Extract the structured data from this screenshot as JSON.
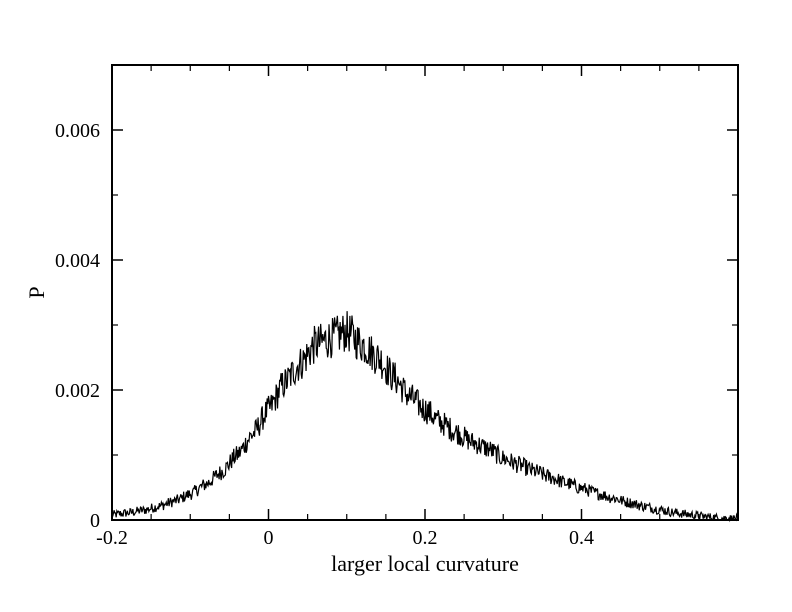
{
  "chart_data": {
    "type": "line",
    "title": "",
    "xlabel": "larger local curvature",
    "ylabel": "P",
    "xlim": [
      -0.2,
      0.6
    ],
    "ylim": [
      0,
      0.007
    ],
    "x_ticks": [
      -0.2,
      0,
      0.2,
      0.4
    ],
    "x_tick_labels": [
      "-0.2",
      "0",
      "0.2",
      "0.4"
    ],
    "y_ticks": [
      0,
      0.002,
      0.004,
      0.006
    ],
    "y_tick_labels": [
      "0",
      "0.002",
      "0.004",
      "0.006"
    ],
    "x_minor_step": 0.05,
    "y_minor_step": 0.001,
    "grid": false,
    "legend": "none",
    "line_color": "#000000",
    "series": [
      {
        "x": [
          -0.2,
          -0.18,
          -0.16,
          -0.14,
          -0.12,
          -0.1,
          -0.08,
          -0.06,
          -0.04,
          -0.02,
          0,
          0.02,
          0.04,
          0.06,
          0.08,
          0.1,
          0.12,
          0.14,
          0.16,
          0.18,
          0.2,
          0.22,
          0.24,
          0.26,
          0.28,
          0.3,
          0.32,
          0.34,
          0.36,
          0.38,
          0.4,
          0.42,
          0.44,
          0.46,
          0.48,
          0.5,
          0.52,
          0.54,
          0.56,
          0.58,
          0.6
        ],
        "values": [
          8e-05,
          0.00011,
          0.00015,
          0.00021,
          0.00029,
          0.0004,
          0.00055,
          0.00074,
          0.001,
          0.00132,
          0.0017,
          0.0021,
          0.0024,
          0.0027,
          0.0028,
          0.0029,
          0.0027,
          0.0025,
          0.0022,
          0.0019,
          0.0017,
          0.0015,
          0.00135,
          0.0012,
          0.0011,
          0.00095,
          0.00085,
          0.00075,
          0.00066,
          0.00057,
          0.00049,
          0.00041,
          0.00034,
          0.00027,
          0.00021,
          0.00016,
          0.00011,
          8e-05,
          5e-05,
          3e-05,
          2e-05
        ]
      }
    ]
  }
}
